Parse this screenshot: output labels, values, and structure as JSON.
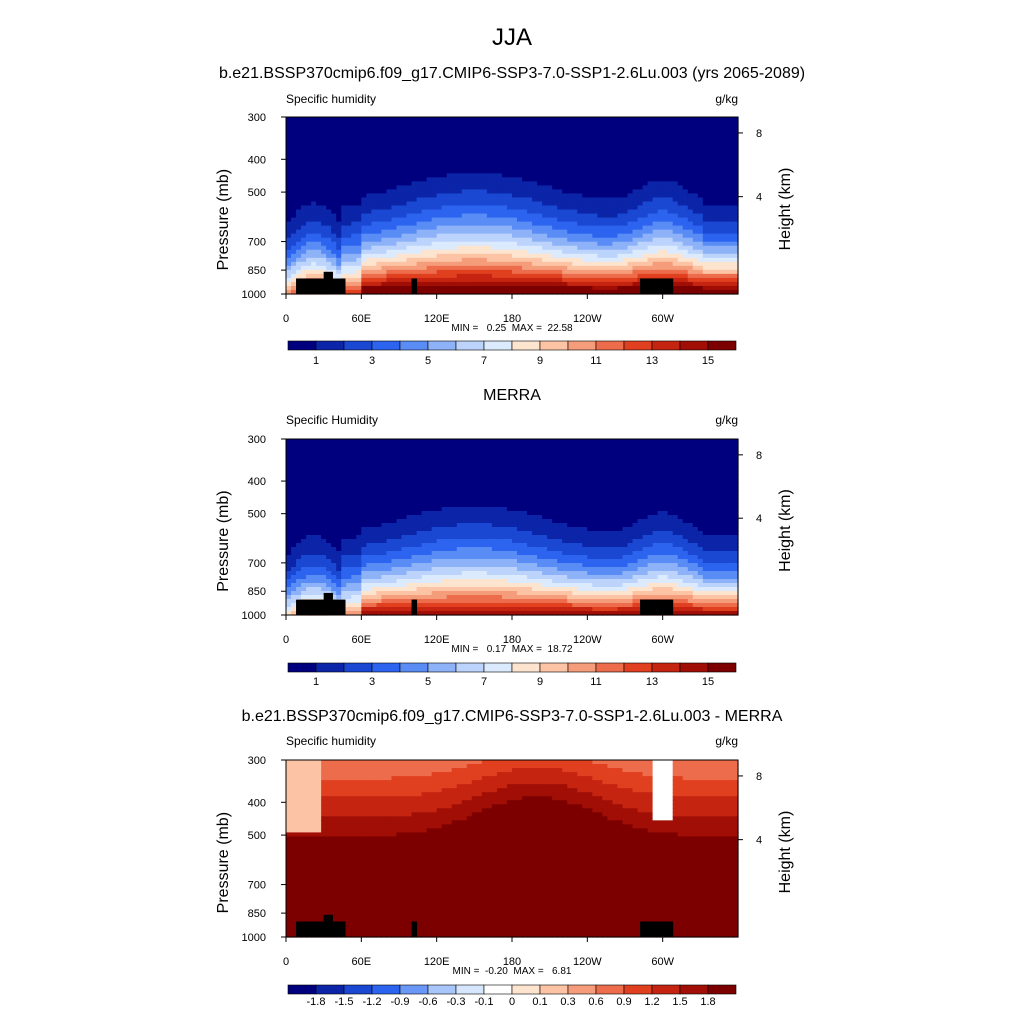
{
  "page_title": "JJA",
  "colors": {
    "seq_palette": [
      "#00007f",
      "#0b24a8",
      "#1a48d2",
      "#2c64f0",
      "#5a8cf5",
      "#8eb2f8",
      "#bcd4fb",
      "#dbeafd",
      "#fde4cf",
      "#fcc4a5",
      "#f59c7a",
      "#ec6c4c",
      "#e0401f",
      "#c52410",
      "#a00e06",
      "#7d0000"
    ],
    "diff_palette": [
      "#00007f",
      "#0b24a8",
      "#1a48d2",
      "#2c64f0",
      "#6a98f7",
      "#a8c6fa",
      "#d6e6fd",
      "#ffffff",
      "#fde4cf",
      "#fcc4a5",
      "#f59c7a",
      "#ec6c4c",
      "#e0401f",
      "#c52410",
      "#a00e06",
      "#7d0000"
    ],
    "topography": "#000000"
  },
  "chart_data": [
    {
      "type": "heatmap",
      "title": "b.e21.BSSP370cmip6.f09_g17.CMIP6-SSP3-7.0-SSP1-2.6Lu.003 (yrs 2065-2089)",
      "left_label": "Specific humidity",
      "right_label": "g/kg",
      "ylabel": "Pressure (mb)",
      "y2label": "Height (km)",
      "x_ticks": [
        "0",
        "60E",
        "120E",
        "180",
        "120W",
        "60W"
      ],
      "x_tick_values": [
        0,
        60,
        120,
        180,
        240,
        300
      ],
      "xlim": [
        0,
        360
      ],
      "y_ticks": [
        "300",
        "400",
        "500",
        "700",
        "850",
        "1000"
      ],
      "y_tick_values": [
        300,
        400,
        500,
        700,
        850,
        1000
      ],
      "ylim": [
        1000,
        300
      ],
      "y_scale": "log",
      "y2_ticks": [
        "8",
        "4"
      ],
      "minmax": "MIN =   0.25  MAX =  22.58",
      "colorbar_labels": [
        "1",
        "3",
        "5",
        "7",
        "9",
        "11",
        "13",
        "15"
      ],
      "levels": [
        1,
        2,
        3,
        4,
        5,
        6,
        7,
        8,
        9,
        10,
        11,
        12,
        13,
        14,
        15
      ],
      "palette": "seq",
      "field": "model"
    },
    {
      "type": "heatmap",
      "title": "MERRA",
      "left_label": "Specific Humidity",
      "right_label": "g/kg",
      "ylabel": "Pressure (mb)",
      "y2label": "Height (km)",
      "x_ticks": [
        "0",
        "60E",
        "120E",
        "180",
        "120W",
        "60W"
      ],
      "x_tick_values": [
        0,
        60,
        120,
        180,
        240,
        300
      ],
      "xlim": [
        0,
        360
      ],
      "y_ticks": [
        "300",
        "400",
        "500",
        "700",
        "850",
        "1000"
      ],
      "y_tick_values": [
        300,
        400,
        500,
        700,
        850,
        1000
      ],
      "ylim": [
        1000,
        300
      ],
      "y_scale": "log",
      "y2_ticks": [
        "8",
        "4"
      ],
      "minmax": "MIN =   0.17  MAX =  18.72",
      "colorbar_labels": [
        "1",
        "3",
        "5",
        "7",
        "9",
        "11",
        "13",
        "15"
      ],
      "levels": [
        1,
        2,
        3,
        4,
        5,
        6,
        7,
        8,
        9,
        10,
        11,
        12,
        13,
        14,
        15
      ],
      "palette": "seq",
      "field": "obs"
    },
    {
      "type": "heatmap",
      "title": "b.e21.BSSP370cmip6.f09_g17.CMIP6-SSP3-7.0-SSP1-2.6Lu.003 - MERRA",
      "left_label": "Specific humidity",
      "right_label": "g/kg",
      "ylabel": "Pressure (mb)",
      "y2label": "Height (km)",
      "x_ticks": [
        "0",
        "60E",
        "120E",
        "180",
        "120W",
        "60W"
      ],
      "x_tick_values": [
        0,
        60,
        120,
        180,
        240,
        300
      ],
      "xlim": [
        0,
        360
      ],
      "y_ticks": [
        "300",
        "400",
        "500",
        "700",
        "850",
        "1000"
      ],
      "y_tick_values": [
        300,
        400,
        500,
        700,
        850,
        1000
      ],
      "ylim": [
        1000,
        300
      ],
      "y_scale": "log",
      "y2_ticks": [
        "8",
        "4"
      ],
      "minmax": "MIN =  -0.20  MAX =   6.81",
      "colorbar_labels": [
        "-1.8",
        "-1.5",
        "-1.2",
        "-0.9",
        "-0.6",
        "-0.3",
        "-0.1",
        "0",
        "0.1",
        "0.3",
        "0.6",
        "0.9",
        "1.2",
        "1.5",
        "1.8"
      ],
      "levels": [
        -1.8,
        -1.5,
        -1.2,
        -0.9,
        -0.6,
        -0.3,
        -0.1,
        0,
        0.1,
        0.3,
        0.6,
        0.9,
        1.2,
        1.5,
        1.8
      ],
      "palette": "diff",
      "field": "diff"
    }
  ]
}
